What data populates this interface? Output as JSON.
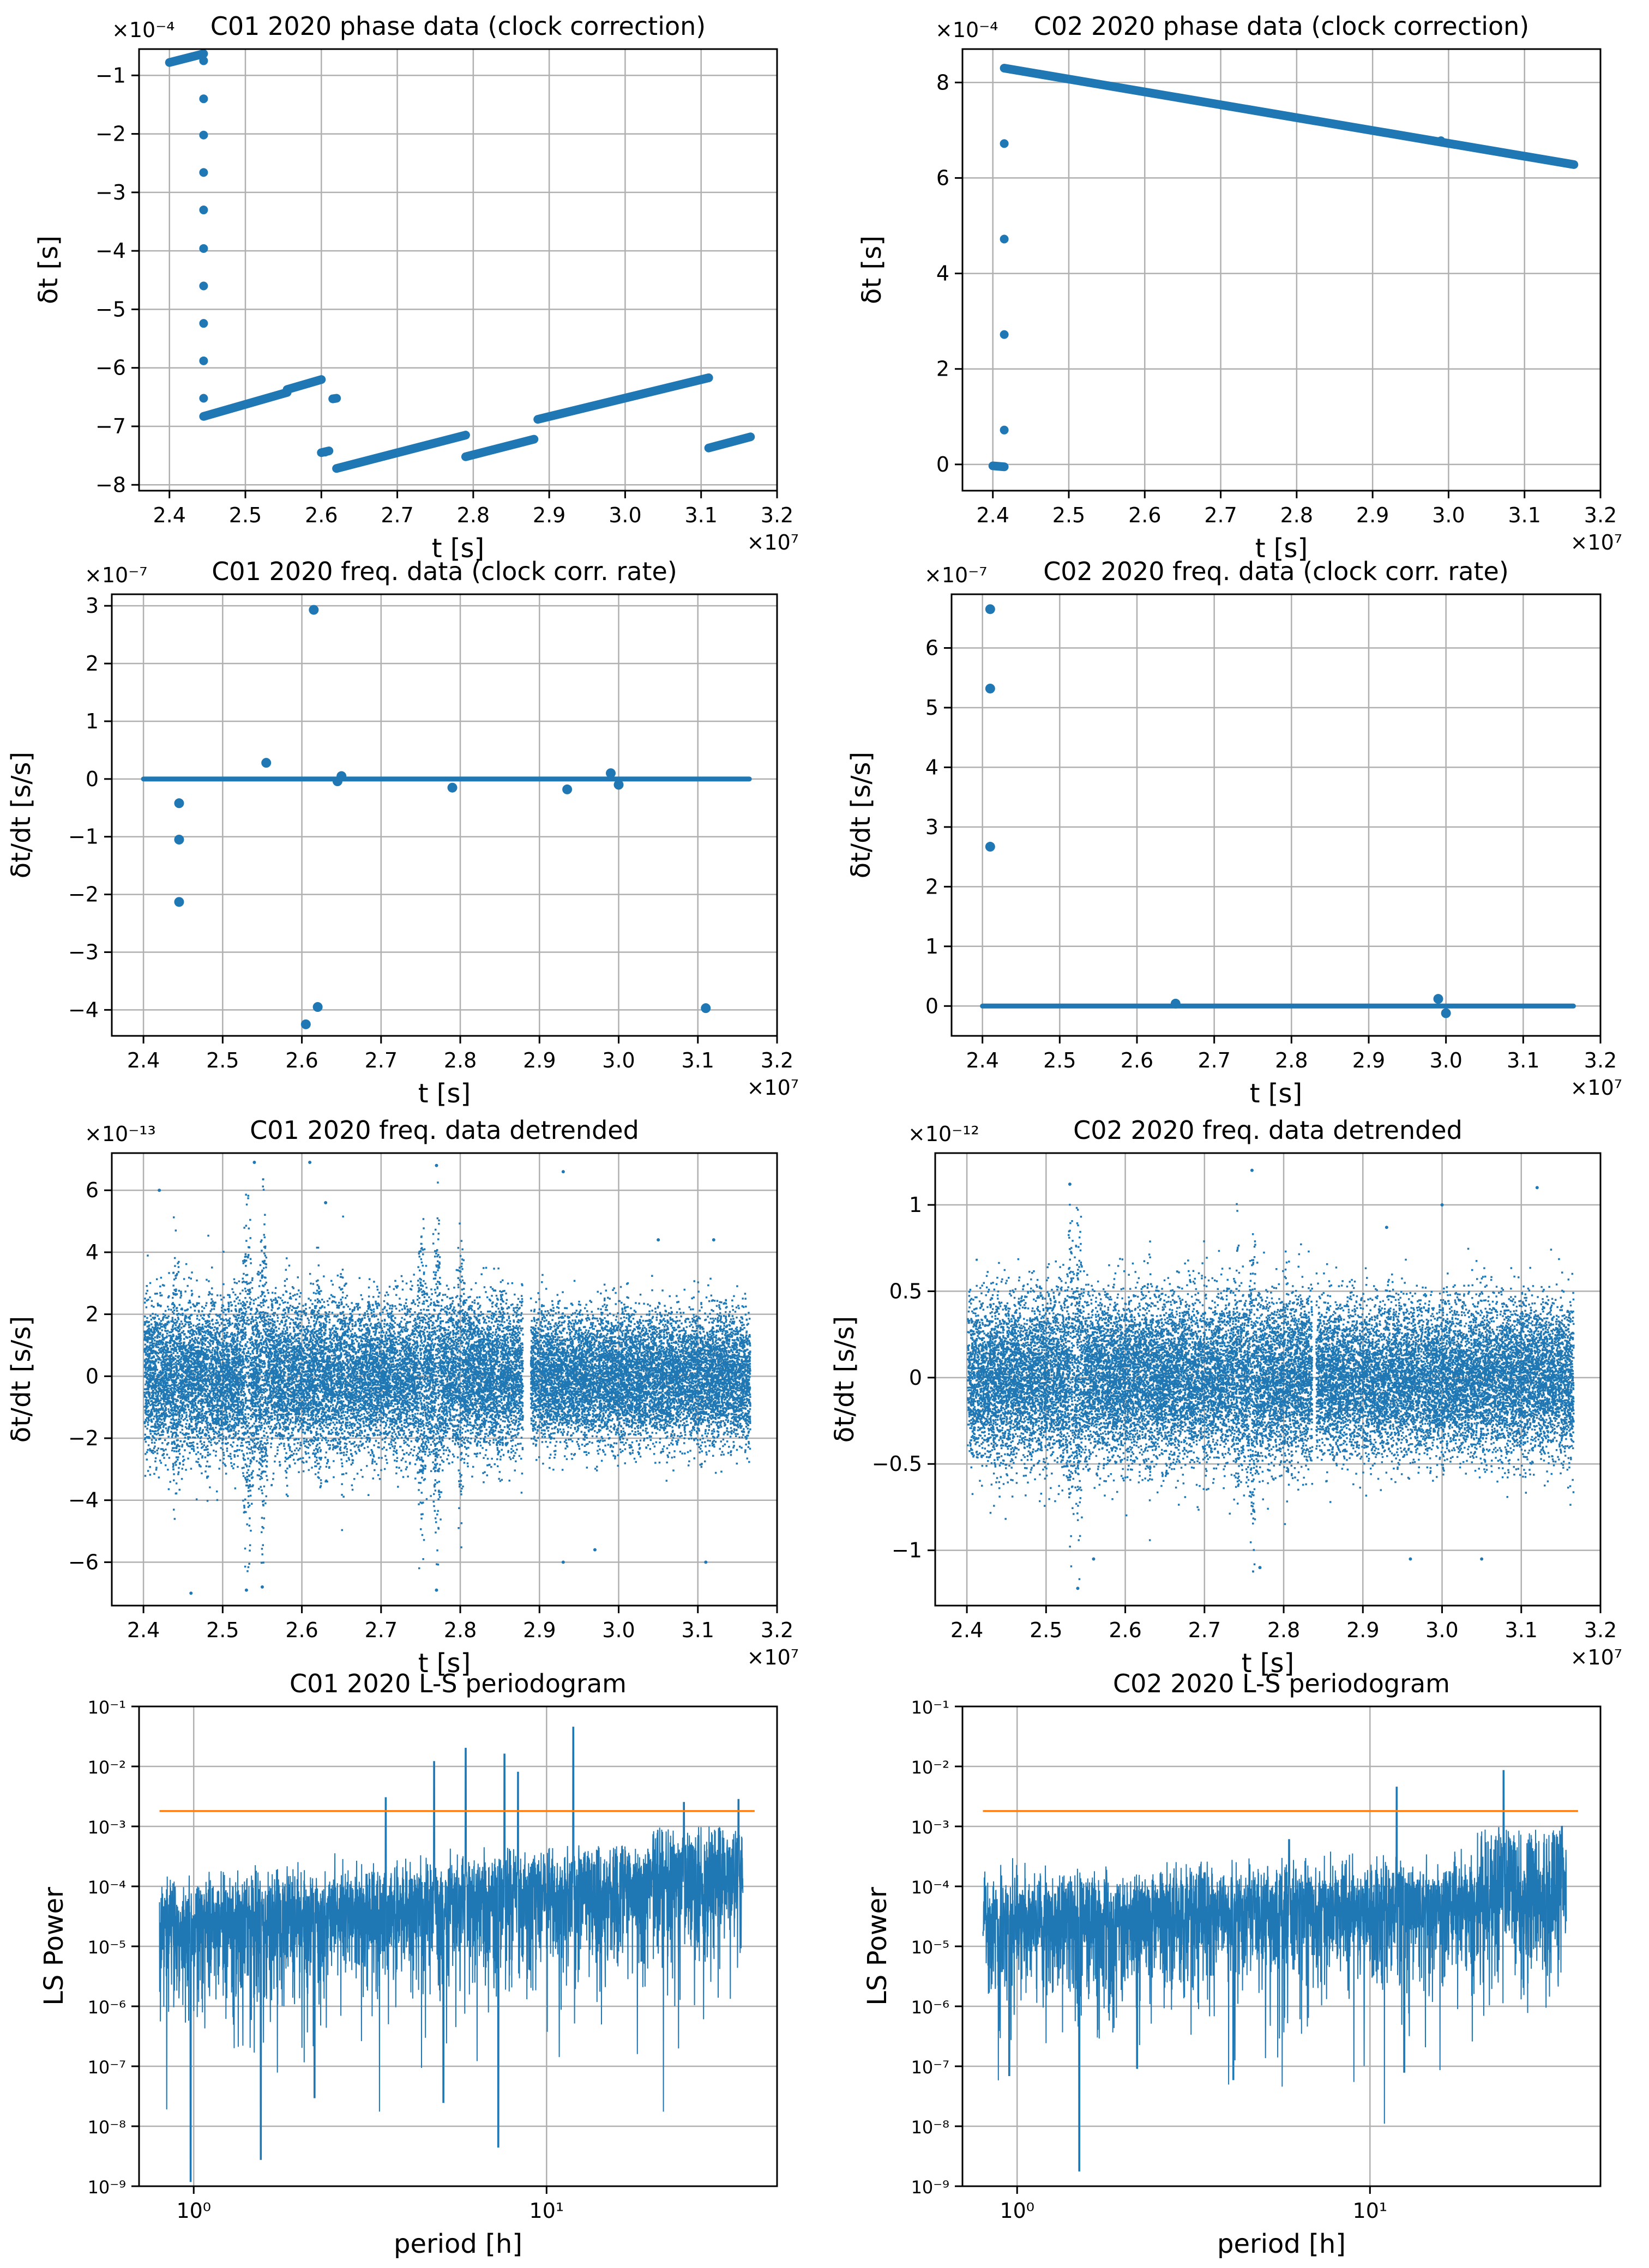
{
  "colors": {
    "series": "#1f77b4",
    "threshold": "#ff7f0e",
    "grid": "#b0b0b0"
  },
  "x_offset_label": "×10⁷",
  "chart_data": [
    {
      "id": "c01-phase",
      "type": "scatter",
      "style": "thick",
      "title": "C01 2020 phase data (clock correction)",
      "xlabel": "t [s]",
      "ylabel": "δt [s]",
      "yexp": "×10⁻⁴",
      "xlim": [
        2.36,
        3.2
      ],
      "ylim": [
        -8.1,
        -0.55
      ],
      "xticks": [
        2.4,
        2.5,
        2.6,
        2.7,
        2.8,
        2.9,
        3.0,
        3.1,
        3.2
      ],
      "yticks": [
        -1,
        -2,
        -3,
        -4,
        -5,
        -6,
        -7,
        -8
      ],
      "segments": [
        [
          [
            2.4,
            -0.78
          ],
          [
            2.445,
            -0.63
          ]
        ],
        [
          [
            2.445,
            -6.83
          ],
          [
            2.555,
            -6.42
          ]
        ],
        [
          [
            2.555,
            -6.37
          ],
          [
            2.6,
            -6.2
          ]
        ],
        [
          [
            2.6,
            -7.45
          ],
          [
            2.61,
            -7.42
          ]
        ],
        [
          [
            2.615,
            -6.53
          ],
          [
            2.62,
            -6.52
          ]
        ],
        [
          [
            2.62,
            -7.72
          ],
          [
            2.79,
            -7.15
          ]
        ],
        [
          [
            2.79,
            -7.52
          ],
          [
            2.88,
            -7.22
          ]
        ],
        [
          [
            2.885,
            -6.88
          ],
          [
            3.11,
            -6.17
          ]
        ],
        [
          [
            3.11,
            -7.37
          ],
          [
            3.165,
            -7.18
          ]
        ]
      ],
      "points": [
        [
          2.445,
          -0.75
        ],
        [
          2.445,
          -1.4
        ],
        [
          2.445,
          -2.02
        ],
        [
          2.445,
          -2.66
        ],
        [
          2.445,
          -3.3
        ],
        [
          2.445,
          -3.96
        ],
        [
          2.445,
          -4.6
        ],
        [
          2.445,
          -5.24
        ],
        [
          2.445,
          -5.88
        ],
        [
          2.445,
          -6.52
        ],
        [
          2.555,
          -6.38
        ],
        [
          2.605,
          -7.44
        ]
      ]
    },
    {
      "id": "c02-phase",
      "type": "scatter",
      "style": "thick",
      "title": "C02 2020 phase data (clock correction)",
      "xlabel": "t [s]",
      "ylabel": "δt [s]",
      "yexp": "×10⁻⁴",
      "xlim": [
        2.36,
        3.2
      ],
      "ylim": [
        -0.55,
        8.7
      ],
      "xticks": [
        2.4,
        2.5,
        2.6,
        2.7,
        2.8,
        2.9,
        3.0,
        3.1,
        3.2
      ],
      "yticks": [
        0,
        2,
        4,
        6,
        8
      ],
      "segments": [
        [
          [
            2.4,
            -0.03
          ],
          [
            2.415,
            -0.05
          ]
        ],
        [
          [
            2.415,
            8.3
          ],
          [
            3.165,
            6.28
          ]
        ]
      ],
      "points": [
        [
          2.415,
          0.72
        ],
        [
          2.415,
          2.72
        ],
        [
          2.415,
          4.72
        ],
        [
          2.415,
          6.72
        ],
        [
          2.99,
          6.78
        ]
      ]
    },
    {
      "id": "c01-freq",
      "type": "scatter",
      "style": "dots",
      "title": "C01 2020 freq. data (clock corr. rate)",
      "xlabel": "t [s]",
      "ylabel": "δt/dt  [s/s]",
      "yexp": "×10⁻⁷",
      "xlim": [
        2.36,
        3.2
      ],
      "ylim": [
        -4.45,
        3.2
      ],
      "xticks": [
        2.4,
        2.5,
        2.6,
        2.7,
        2.8,
        2.9,
        3.0,
        3.1,
        3.2
      ],
      "yticks": [
        3,
        2,
        1,
        0,
        -1,
        -2,
        -3,
        -4
      ],
      "segments": [
        [
          [
            2.4,
            0.0
          ],
          [
            3.165,
            0.0
          ]
        ]
      ],
      "points": [
        [
          2.445,
          -0.42
        ],
        [
          2.445,
          -1.05
        ],
        [
          2.445,
          -2.13
        ],
        [
          2.555,
          0.28
        ],
        [
          2.605,
          -4.25
        ],
        [
          2.615,
          2.93
        ],
        [
          2.62,
          -3.95
        ],
        [
          2.645,
          -0.04
        ],
        [
          2.65,
          0.05
        ],
        [
          2.79,
          -0.15
        ],
        [
          2.935,
          -0.18
        ],
        [
          2.99,
          0.1
        ],
        [
          3.0,
          -0.1
        ],
        [
          3.11,
          -3.97
        ]
      ]
    },
    {
      "id": "c02-freq",
      "type": "scatter",
      "style": "dots",
      "title": "C02 2020 freq. data (clock corr. rate)",
      "xlabel": "t [s]",
      "ylabel": "δt/dt  [s/s]",
      "yexp": "×10⁻⁷",
      "xlim": [
        2.36,
        3.2
      ],
      "ylim": [
        -0.5,
        6.9
      ],
      "xticks": [
        2.4,
        2.5,
        2.6,
        2.7,
        2.8,
        2.9,
        3.0,
        3.1,
        3.2
      ],
      "yticks": [
        0,
        1,
        2,
        3,
        4,
        5,
        6
      ],
      "segments": [
        [
          [
            2.4,
            0.0
          ],
          [
            3.165,
            0.0
          ]
        ]
      ],
      "points": [
        [
          2.41,
          6.65
        ],
        [
          2.41,
          5.32
        ],
        [
          2.41,
          2.67
        ],
        [
          2.65,
          0.04
        ],
        [
          2.99,
          0.12
        ],
        [
          3.0,
          -0.12
        ]
      ]
    },
    {
      "id": "c01-detrend",
      "type": "scatter",
      "style": "cloud",
      "title": "C01 2020 freq. data detrended",
      "xlabel": "t [s]",
      "ylabel": "δt/dt [s/s]",
      "yexp": "×10⁻¹³",
      "xlim": [
        2.36,
        3.2
      ],
      "ylim": [
        -7.4,
        7.2
      ],
      "xticks": [
        2.4,
        2.5,
        2.6,
        2.7,
        2.8,
        2.9,
        3.0,
        3.1,
        3.2
      ],
      "yticks": [
        6,
        4,
        2,
        0,
        -2,
        -4,
        -6
      ],
      "x_range": [
        2.4,
        3.165
      ],
      "band_sigma": 1.3,
      "bursts": [
        [
          2.44,
          2.3
        ],
        [
          2.48,
          1.8
        ],
        [
          2.53,
          3.5
        ],
        [
          2.55,
          3.2
        ],
        [
          2.58,
          2.0
        ],
        [
          2.62,
          2.2
        ],
        [
          2.65,
          2.0
        ],
        [
          2.69,
          1.6
        ],
        [
          2.75,
          3.0
        ],
        [
          2.77,
          3.3
        ],
        [
          2.8,
          2.4
        ],
        [
          2.85,
          2.0
        ]
      ],
      "gap": [
        2.878,
        2.888
      ],
      "quiet_from": 2.888,
      "quiet_sigma": 1.15,
      "outliers": [
        [
          2.42,
          6.0
        ],
        [
          2.54,
          6.9
        ],
        [
          2.61,
          6.9
        ],
        [
          2.77,
          6.8
        ],
        [
          2.93,
          6.6
        ],
        [
          2.53,
          -6.9
        ],
        [
          2.55,
          -6.8
        ],
        [
          2.77,
          -6.9
        ],
        [
          2.46,
          -7.0
        ],
        [
          2.93,
          -6.0
        ],
        [
          2.97,
          -5.6
        ],
        [
          3.11,
          -6.0
        ],
        [
          2.63,
          5.6
        ],
        [
          3.05,
          4.4
        ],
        [
          3.12,
          4.4
        ]
      ]
    },
    {
      "id": "c02-detrend",
      "type": "scatter",
      "style": "cloud",
      "title": "C02 2020 freq. data detrended",
      "xlabel": "t [s]",
      "ylabel": "δt/dt [s/s]",
      "yexp": "×10⁻¹²",
      "xlim": [
        2.36,
        3.2
      ],
      "ylim": [
        -1.32,
        1.3
      ],
      "xticks": [
        2.4,
        2.5,
        2.6,
        2.7,
        2.8,
        2.9,
        3.0,
        3.1,
        3.2
      ],
      "yticks": [
        1.0,
        0.5,
        0.0,
        -0.5,
        -1.0
      ],
      "x_range": [
        2.4,
        3.165
      ],
      "band_sigma": 0.26,
      "bursts": [
        [
          2.53,
          0.55
        ],
        [
          2.54,
          0.5
        ],
        [
          2.63,
          0.38
        ],
        [
          2.74,
          0.42
        ],
        [
          2.76,
          0.55
        ],
        [
          2.8,
          0.38
        ]
      ],
      "gap": [
        2.835,
        2.84
      ],
      "quiet_from": 2.84,
      "quiet_sigma": 0.24,
      "outliers": [
        [
          2.54,
          -1.22
        ],
        [
          2.53,
          1.12
        ],
        [
          2.76,
          1.2
        ],
        [
          3.12,
          1.1
        ],
        [
          2.93,
          0.87
        ],
        [
          3.0,
          1.0
        ],
        [
          2.56,
          -1.05
        ],
        [
          2.77,
          -1.1
        ],
        [
          3.05,
          -1.05
        ],
        [
          2.96,
          -1.05
        ]
      ]
    },
    {
      "id": "c01-ls",
      "type": "line",
      "style": "periodogram",
      "title": "C01 2020 L-S periodogram",
      "xlabel": "period [h]",
      "ylabel": "LS Power",
      "xscale": "log",
      "yscale": "log",
      "xlim": [
        0.7,
        45
      ],
      "ylim": [
        1e-09,
        0.1
      ],
      "xticks": [
        1,
        10
      ],
      "xticklabels": [
        "10⁰",
        "10¹"
      ],
      "yticks": [
        -1,
        -2,
        -3,
        -4,
        -5,
        -6,
        -7,
        -8,
        -9
      ],
      "yticklabels": [
        "10⁻¹",
        "10⁻²",
        "10⁻³",
        "10⁻⁴",
        "10⁻⁵",
        "10⁻⁶",
        "10⁻⁷",
        "10⁻⁸",
        "10⁻⁹"
      ],
      "period_range": [
        0.8,
        36
      ],
      "threshold": 0.0018,
      "peaks": [
        [
          4.8,
          0.012
        ],
        [
          5.9,
          0.02
        ],
        [
          7.6,
          0.016
        ],
        [
          8.3,
          0.008
        ],
        [
          11.9,
          0.045
        ],
        [
          3.5,
          0.003
        ],
        [
          24.5,
          0.0025
        ],
        [
          35,
          0.0028
        ]
      ],
      "dips": [
        [
          0.98,
          1.2e-09
        ],
        [
          1.55,
          2.8e-09
        ],
        [
          7.3,
          4.5e-09
        ],
        [
          5.1,
          2.5e-08
        ],
        [
          2.2,
          3e-08
        ]
      ]
    },
    {
      "id": "c02-ls",
      "type": "line",
      "style": "periodogram",
      "title": "C02 2020 L-S periodogram",
      "xlabel": "period [h]",
      "ylabel": "LS Power",
      "xscale": "log",
      "yscale": "log",
      "xlim": [
        0.7,
        45
      ],
      "ylim": [
        1e-09,
        0.1
      ],
      "xticks": [
        1,
        10
      ],
      "xticklabels": [
        "10⁰",
        "10¹"
      ],
      "yticks": [
        -1,
        -2,
        -3,
        -4,
        -5,
        -6,
        -7,
        -8,
        -9
      ],
      "yticklabels": [
        "10⁻¹",
        "10⁻²",
        "10⁻³",
        "10⁻⁴",
        "10⁻⁵",
        "10⁻⁶",
        "10⁻⁷",
        "10⁻⁸",
        "10⁻⁹"
      ],
      "period_range": [
        0.8,
        36
      ],
      "threshold": 0.0018,
      "peaks": [
        [
          11.9,
          0.0045
        ],
        [
          23.9,
          0.0085
        ],
        [
          35,
          0.001
        ],
        [
          5.9,
          0.0006
        ]
      ],
      "dips": [
        [
          1.5,
          1.8e-09
        ],
        [
          0.95,
          7e-08
        ],
        [
          12.5,
          8e-08
        ],
        [
          4.1,
          6e-08
        ]
      ]
    }
  ]
}
